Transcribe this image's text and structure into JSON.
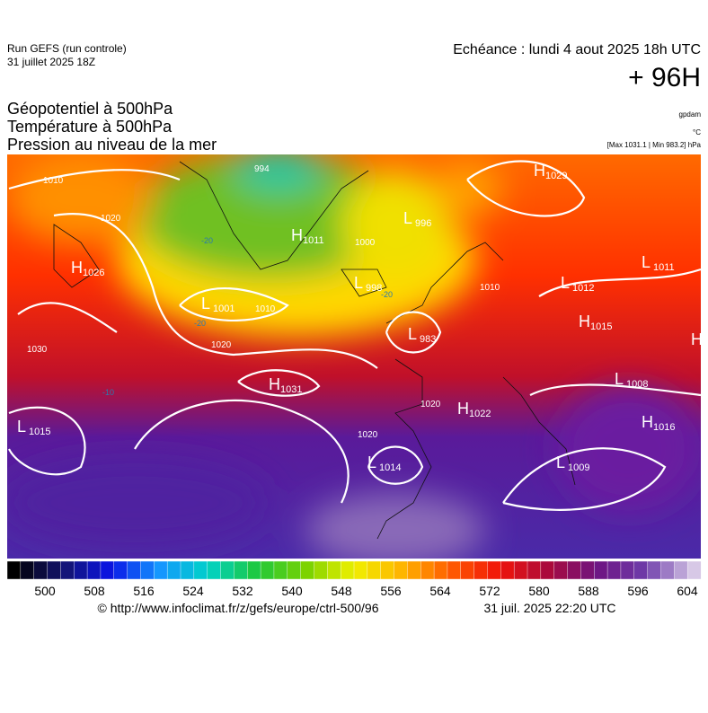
{
  "header": {
    "run": "Run GEFS (run controle)",
    "run_date": "31 juillet 2025 18Z",
    "echeance": "Echéance : lundi 4 aout 2025 18h UTC",
    "lead": "+ 96H"
  },
  "titles": [
    "Géopotentiel à 500hPa",
    "Température à 500hPa",
    "Pression au niveau de la mer"
  ],
  "units": [
    "gpdam",
    "°C",
    "[Max 1031.1 | Min 983.2] hPa"
  ],
  "map": {
    "centers": [
      {
        "letter": "H",
        "value": "1029"
      },
      {
        "letter": "H",
        "value": "1011"
      },
      {
        "letter": "L",
        "value": "996"
      },
      {
        "letter": "H",
        "value": "1026"
      },
      {
        "letter": "L",
        "value": "998"
      },
      {
        "letter": "L",
        "value": "1001"
      },
      {
        "letter": "L",
        "value": "1012"
      },
      {
        "letter": "L",
        "value": "1011"
      },
      {
        "letter": "H",
        "value": "1015"
      },
      {
        "letter": "L",
        "value": "983"
      },
      {
        "letter": "H",
        "value": "1031"
      },
      {
        "letter": "L",
        "value": "1008"
      },
      {
        "letter": "L",
        "value": "1015"
      },
      {
        "letter": "H",
        "value": "1022"
      },
      {
        "letter": "H",
        "value": "1016"
      },
      {
        "letter": "L",
        "value": "1014"
      },
      {
        "letter": "L",
        "value": "1009"
      },
      {
        "letter": "H",
        "value": ""
      }
    ],
    "isobar_labels": [
      "994",
      "1010",
      "1020",
      "1030",
      "1010",
      "1020",
      "1000",
      "1010",
      "1020",
      "1020"
    ],
    "temperature_labels": [
      "-20",
      "-20",
      "-20",
      "-10"
    ]
  },
  "colorbar": {
    "labels": [
      "500",
      "508",
      "516",
      "524",
      "532",
      "540",
      "548",
      "556",
      "564",
      "572",
      "580",
      "588",
      "596",
      "604"
    ]
  },
  "footer": {
    "source": "© http://www.infoclimat.fr/z/gefs/europe/ctrl-500/96",
    "generated": "31 juil. 2025 22:20 UTC"
  }
}
